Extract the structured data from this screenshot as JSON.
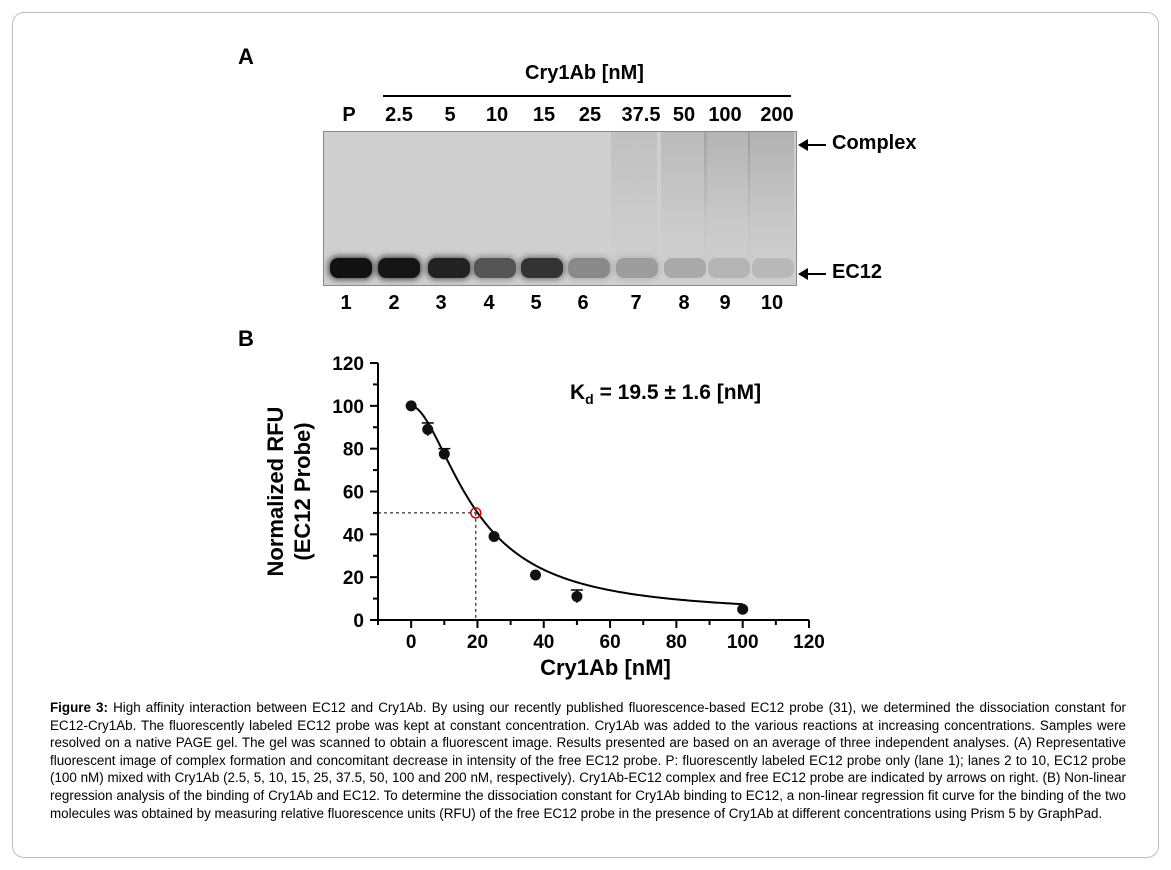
{
  "panel_a": {
    "label": "A",
    "title": "Cry1Ab [nM]",
    "lane_headers": [
      "P",
      "2.5",
      "5",
      "10",
      "15",
      "25",
      "37.5",
      "50",
      "100",
      "200"
    ],
    "lane_numbers": [
      "1",
      "2",
      "3",
      "4",
      "5",
      "6",
      "7",
      "8",
      "9",
      "10"
    ],
    "complex_label": "Complex",
    "probe_label": "EC12"
  },
  "panel_b": {
    "label": "B",
    "annotation_k": "K",
    "annotation_sub": "d",
    "annotation_rest": " = 19.5 ± 1.6 [nM]"
  },
  "chart_data": {
    "type": "scatter",
    "title": "",
    "xlabel": "Cry1Ab [nM]",
    "ylabel": "Normalized RFU",
    "ylabel2": "(EC12 Probe)",
    "xlim": [
      -10,
      120
    ],
    "ylim": [
      0,
      120
    ],
    "xticks": [
      0,
      20,
      40,
      60,
      80,
      100,
      120
    ],
    "yticks": [
      0,
      20,
      40,
      60,
      80,
      100,
      120
    ],
    "series": [
      {
        "x": [
          0,
          5,
          10,
          25,
          37.5,
          50,
          100
        ],
        "y": [
          100,
          89,
          77.5,
          39,
          21,
          11,
          5
        ],
        "error": [
          1,
          3,
          2.5,
          1,
          1,
          3,
          1
        ]
      }
    ],
    "fit": {
      "kd": 19.5,
      "top": 100,
      "bottom": 2.5,
      "hill": 1.8
    },
    "midpoint": {
      "x": 19.5,
      "y": 50
    },
    "grid": false
  },
  "caption": {
    "label": "Figure 3:",
    "text": " High affinity interaction between EC12 and Cry1Ab. By using our recently published fluorescence-based EC12 probe (31), we determined the dissociation constant for EC12-Cry1Ab. The fluorescently labeled EC12 probe was kept at constant concentration. Cry1Ab was added to the various reactions at increasing concentrations. Samples were resolved on a native PAGE gel. The gel was scanned to obtain a fluorescent image. Results presented are based on an average of three independent analyses. (A) Representative fluorescent image of complex formation and concomitant decrease in intensity of the free EC12 probe. P: fluorescently labeled EC12 probe only (lane 1); lanes 2 to 10, EC12 probe (100 nM) mixed with Cry1Ab (2.5, 5, 10, 15, 25, 37.5, 50, 100 and 200 nM, respectively).  Cry1Ab-EC12 complex and free EC12 probe are indicated by arrows on right. (B) Non-linear regression analysis of the binding of Cry1Ab and EC12. To determine the dissociation constant for Cry1Ab binding to EC12, a non-linear regression fit  curve for the binding of the two molecules was obtained by measuring relative fluorescence units (RFU) of the free EC12 probe in the presence of Cry1Ab at different concentrations using Prism 5 by GraphPad."
  },
  "colors": {
    "gel_background": "#cfcfcf",
    "band": "#111111",
    "curve": "#000000",
    "midpoint_marker": "#e00000"
  }
}
